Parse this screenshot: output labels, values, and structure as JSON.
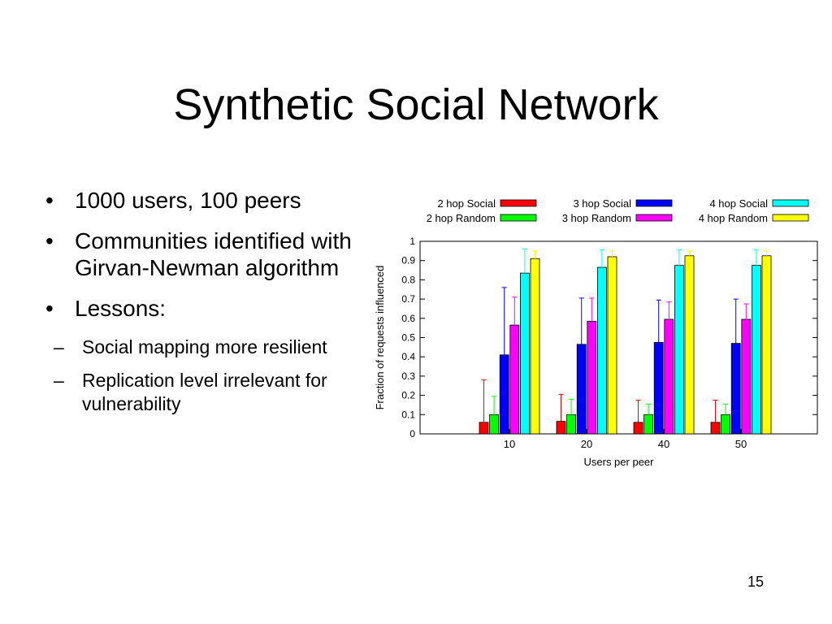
{
  "slide": {
    "title": "Synthetic Social Network",
    "bullets": [
      {
        "text": "1000 users, 100 peers"
      },
      {
        "text": "Communities identified with Girvan-Newman algorithm"
      },
      {
        "text": "Lessons:",
        "subbullets": [
          "Social mapping more resilient",
          "Replication level irrelevant for vulnerability"
        ]
      }
    ],
    "bullet_mark": "•",
    "subbullet_mark": "–",
    "page_number": "15"
  },
  "chart_data": {
    "type": "bar",
    "title": "",
    "xlabel": "Users per peer",
    "ylabel": "Fraction of requests influenced",
    "categories": [
      "10",
      "20",
      "40",
      "50"
    ],
    "ylim": [
      0,
      1
    ],
    "yticks": [
      "0",
      "0.1",
      "0.2",
      "0.3",
      "0.4",
      "0.5",
      "0.6",
      "0.7",
      "0.8",
      "0.9",
      "1"
    ],
    "grid": false,
    "legend_position": "top",
    "error_bars": "upper",
    "series": [
      {
        "name": "2 hop Social",
        "color": "#ff0000",
        "values": [
          0.06,
          0.065,
          0.06,
          0.06
        ],
        "err_upper": [
          0.28,
          0.205,
          0.175,
          0.175
        ]
      },
      {
        "name": "2 hop Random",
        "color": "#00ff00",
        "values": [
          0.1,
          0.1,
          0.1,
          0.1
        ],
        "err_upper": [
          0.195,
          0.18,
          0.155,
          0.155
        ]
      },
      {
        "name": "3 hop Social",
        "color": "#0000ff",
        "values": [
          0.41,
          0.465,
          0.475,
          0.47
        ],
        "err_upper": [
          0.76,
          0.705,
          0.695,
          0.7
        ]
      },
      {
        "name": "3 hop Random",
        "color": "#ff00ff",
        "values": [
          0.565,
          0.585,
          0.595,
          0.595
        ],
        "err_upper": [
          0.71,
          0.705,
          0.685,
          0.675
        ]
      },
      {
        "name": "4 hop Social",
        "color": "#00ffff",
        "values": [
          0.835,
          0.865,
          0.875,
          0.875
        ],
        "err_upper": [
          0.96,
          0.955,
          0.955,
          0.955
        ]
      },
      {
        "name": "4 hop Random",
        "color": "#ffff00",
        "values": [
          0.91,
          0.92,
          0.925,
          0.925
        ],
        "err_upper": [
          0.95,
          0.95,
          0.95,
          0.95
        ]
      }
    ]
  }
}
